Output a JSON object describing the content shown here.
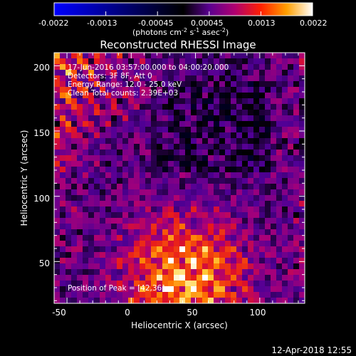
{
  "chart_data": {
    "type": "heatmap",
    "title": "Reconstructed RHESSI Image",
    "xlabel": "Heliocentric X (arcsec)",
    "ylabel": "Heliocentric Y (arcsec)",
    "xlim": [
      -60,
      135
    ],
    "ylim": [
      18,
      210
    ],
    "x_ticks": [
      "-50",
      "0",
      "50",
      "100"
    ],
    "y_ticks": [
      "50",
      "100",
      "150",
      "200"
    ],
    "colorbar": {
      "range": [
        -0.0022,
        0.0022
      ],
      "tick_labels": [
        "-0.0022",
        "-0.0013",
        "-0.00045",
        "0.00045",
        "0.0013",
        "0.0022"
      ],
      "label_main": "(photons cm",
      "label_exp1": "-2",
      "label_mid": " s",
      "label_exp2": "-1",
      "label_mid2": " asec",
      "label_exp3": "-2",
      "label_end": ")"
    },
    "annotations": {
      "time_range": "17-Jun-2016 03:57:00.000 to 04:00:20.000",
      "detectors": "Detectors: 3F 8F, Att 0",
      "energy": "Energy Range: 12.0 - 25.0 keV",
      "clean": "Clean    Total counts: 2.39E+03",
      "peak": "Position of Peak = [42,36]"
    },
    "peak_position": [
      42,
      36
    ]
  },
  "footer": {
    "date": "12-Apr-2018 12:55"
  }
}
